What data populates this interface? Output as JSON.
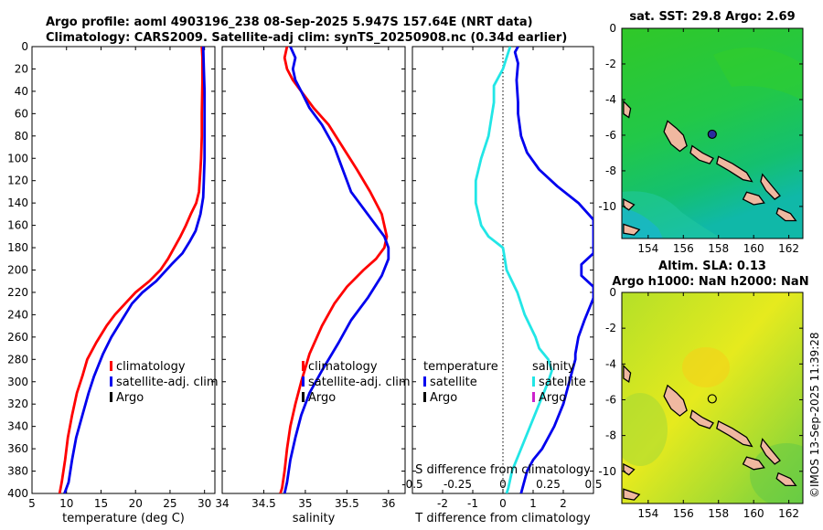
{
  "header": {
    "line1": "Argo profile: aoml 4903196_238 08-Sep-2025 5.947S 157.64E (NRT data)",
    "line2": "Climatology: CARS2009. Satellite-adj clim: synTS_20250908.nc (0.34d earlier)"
  },
  "credit": "©IMOS 13-Sep-2025 11:39:28",
  "colors": {
    "climatology": "#ff0000",
    "satellite": "#0000ee",
    "argo": "#000000",
    "salinity_satellite": "#22e6e6",
    "salinity_argo": "#cc22cc"
  },
  "chart_data": [
    {
      "type": "line",
      "name": "temperature-profile",
      "xlabel": "temperature (deg C)",
      "ylabel": "",
      "xlim": [
        5,
        31.5
      ],
      "ylim": [
        400,
        0
      ],
      "xticks": [
        5,
        10,
        15,
        20,
        25,
        30
      ],
      "yticks": [
        0,
        20,
        40,
        60,
        80,
        100,
        120,
        140,
        160,
        180,
        200,
        220,
        240,
        260,
        280,
        300,
        320,
        340,
        360,
        380,
        400
      ],
      "legend": [
        "climatology",
        "satellite-adj. clim",
        "Argo"
      ],
      "series": [
        {
          "name": "climatology",
          "x": [
            29.6,
            29.7,
            29.7,
            29.6,
            29.6,
            29.5,
            29.4,
            29.3,
            29.2,
            28.8,
            28.0,
            27.3,
            26.5,
            25.6,
            24.7,
            23.6,
            22.0,
            20.0,
            18.5,
            17.0,
            15.8,
            14.3,
            13.0,
            12.3,
            11.5,
            10.8,
            10.2,
            9.8,
            9.3,
            9.0
          ],
          "y": [
            0,
            10,
            30,
            60,
            80,
            100,
            110,
            120,
            130,
            140,
            150,
            160,
            170,
            180,
            190,
            200,
            210,
            220,
            230,
            240,
            250,
            265,
            280,
            295,
            310,
            330,
            350,
            370,
            390,
            400
          ]
        },
        {
          "name": "satellite-adj. clim",
          "x": [
            29.8,
            29.9,
            30.0,
            30.0,
            30.0,
            30.0,
            29.9,
            29.8,
            29.4,
            28.7,
            27.8,
            26.8,
            25.2,
            23.0,
            21.0,
            19.5,
            18.0,
            16.5,
            15.3,
            14.0,
            13.2,
            12.3,
            11.4,
            10.8,
            10.3,
            9.7
          ],
          "y": [
            0,
            20,
            40,
            60,
            80,
            100,
            120,
            135,
            150,
            165,
            175,
            185,
            195,
            210,
            220,
            230,
            245,
            260,
            275,
            295,
            310,
            330,
            350,
            370,
            390,
            400
          ]
        }
      ]
    },
    {
      "type": "line",
      "name": "salinity-profile",
      "xlabel": "salinity",
      "xlim": [
        34,
        36.2
      ],
      "ylim": [
        400,
        0
      ],
      "xticks": [
        34,
        34.5,
        35,
        35.5,
        36
      ],
      "legend": [
        "climatology",
        "satellite-adj. clim",
        "Argo"
      ],
      "series": [
        {
          "name": "climatology",
          "x": [
            34.78,
            34.75,
            34.78,
            34.85,
            34.95,
            35.1,
            35.28,
            35.45,
            35.62,
            35.78,
            35.92,
            35.98,
            35.95,
            35.85,
            35.7,
            35.5,
            35.35,
            35.2,
            35.05,
            34.95,
            34.88,
            34.82,
            34.78,
            34.75,
            34.72,
            34.7
          ],
          "y": [
            0,
            10,
            20,
            30,
            40,
            55,
            70,
            90,
            110,
            130,
            150,
            170,
            180,
            190,
            200,
            215,
            230,
            250,
            275,
            300,
            320,
            340,
            360,
            380,
            395,
            400
          ]
        },
        {
          "name": "satellite-adj. clim",
          "x": [
            34.82,
            34.88,
            34.85,
            34.88,
            34.95,
            35.05,
            35.2,
            35.35,
            35.45,
            35.55,
            35.75,
            35.95,
            36.0,
            36.0,
            35.92,
            35.75,
            35.55,
            35.4,
            35.2,
            35.05,
            34.95,
            34.88,
            34.82,
            34.78,
            34.75
          ],
          "y": [
            0,
            10,
            20,
            30,
            40,
            55,
            70,
            90,
            110,
            130,
            150,
            170,
            180,
            190,
            205,
            225,
            245,
            265,
            290,
            310,
            330,
            350,
            370,
            390,
            400
          ]
        }
      ]
    },
    {
      "type": "line",
      "name": "difference-profile",
      "xlabel": "T difference from climatology",
      "xlabel_top": "S difference from climatology",
      "xlim": [
        -3,
        3
      ],
      "ylim": [
        400,
        0
      ],
      "xticks": [
        -2,
        -1,
        0,
        1,
        2
      ],
      "xticks_top": [
        -0.5,
        -0.25,
        0,
        0.25,
        0.5
      ],
      "legend_temperature": [
        "temperature",
        "satellite",
        "Argo"
      ],
      "legend_salinity": [
        "salinity",
        "satellite",
        "Argo"
      ],
      "series": [
        {
          "name": "temperature satellite",
          "x": [
            0.5,
            0.4,
            0.5,
            0.45,
            0.5,
            0.5,
            0.6,
            0.8,
            1.2,
            1.8,
            2.5,
            3.0,
            3.0,
            2.6,
            2.6,
            3.0,
            3.0,
            2.7,
            2.5,
            2.4,
            2.4,
            2.2,
            2.1,
            2.0,
            1.7,
            1.5,
            1.3,
            1.0,
            0.8,
            0.7,
            0.6
          ],
          "y": [
            0,
            5,
            15,
            30,
            50,
            60,
            80,
            95,
            110,
            125,
            140,
            155,
            185,
            195,
            205,
            215,
            225,
            245,
            260,
            275,
            280,
            300,
            310,
            320,
            340,
            350,
            360,
            370,
            380,
            390,
            400
          ]
        },
        {
          "name": "salinity satellite",
          "x": [
            0.04,
            0.0,
            -0.05,
            -0.05,
            -0.08,
            -0.12,
            -0.15,
            -0.15,
            -0.12,
            -0.08,
            0.0,
            0.02,
            0.08,
            0.12,
            0.18,
            0.2,
            0.25,
            0.27,
            0.25,
            0.2,
            0.15,
            0.1,
            0.05,
            0.03,
            0.02
          ],
          "y": [
            0,
            20,
            35,
            50,
            80,
            100,
            120,
            140,
            160,
            170,
            180,
            200,
            220,
            240,
            260,
            270,
            280,
            290,
            300,
            320,
            340,
            360,
            380,
            395,
            400
          ]
        }
      ]
    },
    {
      "type": "heatmap",
      "name": "sst-map",
      "title": "sat. SST: 29.8 Argo: 2.69",
      "xticks": [
        154,
        156,
        158,
        160,
        162
      ],
      "yticks": [
        0,
        -2,
        -4,
        -6,
        -8,
        -10
      ],
      "xlim": [
        152.5,
        162.8
      ],
      "ylim": [
        -11.8,
        0
      ]
    },
    {
      "type": "heatmap",
      "name": "sla-map",
      "title_line1": "Altim. SLA: 0.13",
      "title_line2": "Argo h1000: NaN h2000: NaN",
      "xticks": [
        154,
        156,
        158,
        160,
        162
      ],
      "yticks": [
        0,
        -2,
        -4,
        -6,
        -8,
        -10
      ],
      "xlim": [
        152.5,
        162.8
      ],
      "ylim": [
        -11.8,
        0
      ]
    }
  ]
}
